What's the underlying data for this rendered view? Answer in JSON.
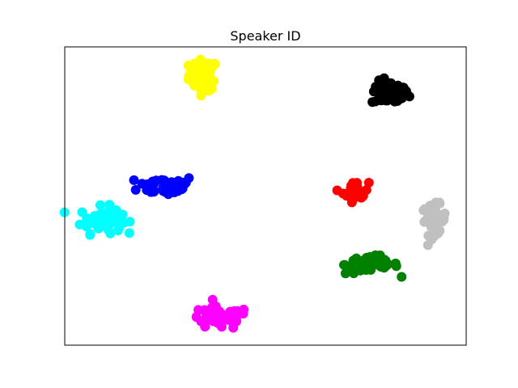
{
  "chart_data": {
    "type": "scatter",
    "title": "Speaker ID",
    "xlabel": "",
    "ylabel": "",
    "xlim": [
      0,
      100
    ],
    "ylim": [
      0,
      100
    ],
    "grid": false,
    "ticks_visible": false,
    "legend": "none",
    "series": [
      {
        "color": "#ffff00",
        "center": [
          34.5,
          90.5
        ],
        "spread": [
          1.8,
          2.6
        ],
        "n": 60
      },
      {
        "color": "#000000",
        "center": [
          81.0,
          84.5
        ],
        "spread": [
          2.3,
          2.0
        ],
        "n": 60
      },
      {
        "color": "#0000ff",
        "center": [
          25.5,
          53.5
        ],
        "spread": [
          3.6,
          1.7
        ],
        "n": 45
      },
      {
        "color": "#00ffff",
        "center": [
          9.0,
          42.0
        ],
        "spread": [
          2.6,
          2.2
        ],
        "n": 60
      },
      {
        "color": "#ff0000",
        "center": [
          72.5,
          51.5
        ],
        "spread": [
          1.6,
          1.7
        ],
        "n": 35
      },
      {
        "color": "#c0c0c0",
        "center": [
          92.0,
          42.0
        ],
        "spread": [
          1.5,
          2.5
        ],
        "n": 50
      },
      {
        "color": "#008000",
        "center": [
          76.5,
          27.0
        ],
        "spread": [
          3.3,
          1.6
        ],
        "n": 50
      },
      {
        "color": "#ff00ff",
        "center": [
          38.5,
          9.0
        ],
        "spread": [
          3.8,
          1.9
        ],
        "n": 50
      }
    ]
  }
}
